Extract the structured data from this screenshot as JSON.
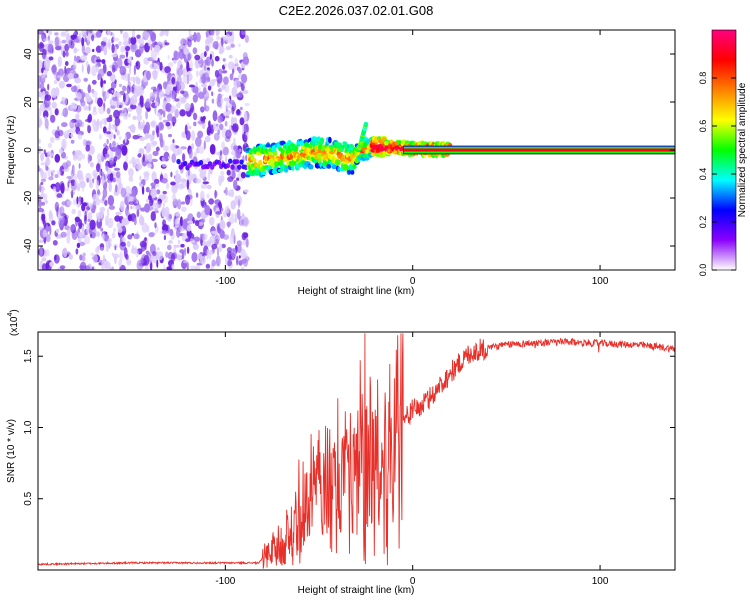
{
  "title": "C2E2.2026.037.02.01.G08",
  "colors": {
    "snr_line": "#e8302a",
    "axis": "#000000",
    "guide": "#8a8a8a"
  },
  "chart_data": [
    {
      "type": "heatmap",
      "title": "C2E2.2026.037.02.01.G08",
      "xlabel": "Height of straight line (km)",
      "ylabel": "Frequency (Hz)",
      "xlim": [
        -200,
        140
      ],
      "ylim": [
        -50,
        50
      ],
      "x_ticks": [
        -100,
        0,
        100
      ],
      "y_ticks": [
        -40,
        -20,
        0,
        20,
        40
      ],
      "x_tick_labels": [
        "-100",
        "0",
        "100"
      ],
      "y_tick_labels": [
        "-40",
        "-20",
        "0",
        "20",
        "40"
      ],
      "colorbar": {
        "label": "Normalized spectral amplitude",
        "range": [
          0,
          1
        ],
        "ticks": [
          "0.0",
          "0.2",
          "0.4",
          "0.6",
          "0.8"
        ],
        "colors": [
          "#ffffff",
          "#8a00ff",
          "#0000ff",
          "#00ffff",
          "#00ff00",
          "#ffff00",
          "#ff8000",
          "#ff0000",
          "#ff0080"
        ]
      },
      "features": [
        {
          "name": "noise",
          "x_range": [
            -200,
            -88
          ],
          "freq_range": [
            -50,
            50
          ]
        },
        {
          "name": "ridge",
          "x": [
            -88,
            -70,
            -50,
            -40,
            -32,
            -28,
            -20,
            -10,
            0,
            10,
            20
          ],
          "freq": [
            -5,
            -3,
            -1,
            -2,
            -4,
            0,
            1,
            1,
            0.5,
            0.3,
            0.2
          ]
        },
        {
          "name": "spike",
          "x": -27,
          "freq_range": [
            0,
            11
          ]
        },
        {
          "name": "carrier",
          "x_range": [
            -5,
            140
          ],
          "freq": 0
        }
      ]
    },
    {
      "type": "line",
      "xlabel": "Height of straight line (km)",
      "ylabel": "SNR (10 * v/v)",
      "y_multiplier": "(x10",
      "y_multiplier_exp": "4",
      "xlim": [
        -200,
        140
      ],
      "ylim": [
        0,
        1.67
      ],
      "x_ticks": [
        -100,
        0,
        100
      ],
      "y_ticks": [
        0.5,
        1.0,
        1.5
      ],
      "x_tick_labels": [
        "-100",
        "0",
        "100"
      ],
      "y_tick_labels": [
        "0.5",
        "1.0",
        "1.5"
      ],
      "series": [
        {
          "name": "SNR",
          "x": [
            -200,
            -150,
            -100,
            -82,
            -78,
            -70,
            -60,
            -55,
            -50,
            -45,
            -40,
            -35,
            -30,
            -27,
            -24,
            -20,
            -15,
            -10,
            -5,
            0,
            5,
            10,
            15,
            20,
            25,
            30,
            40,
            50,
            60,
            80,
            100,
            120,
            135,
            140
          ],
          "y": [
            0.04,
            0.05,
            0.05,
            0.05,
            0.12,
            0.18,
            0.35,
            0.5,
            0.55,
            0.6,
            0.55,
            0.6,
            0.55,
            0.85,
            0.95,
            0.78,
            0.72,
            0.88,
            1.05,
            1.12,
            1.15,
            1.22,
            1.3,
            1.38,
            1.45,
            1.52,
            1.56,
            1.58,
            1.59,
            1.6,
            1.59,
            1.58,
            1.56,
            1.55
          ]
        }
      ]
    }
  ]
}
